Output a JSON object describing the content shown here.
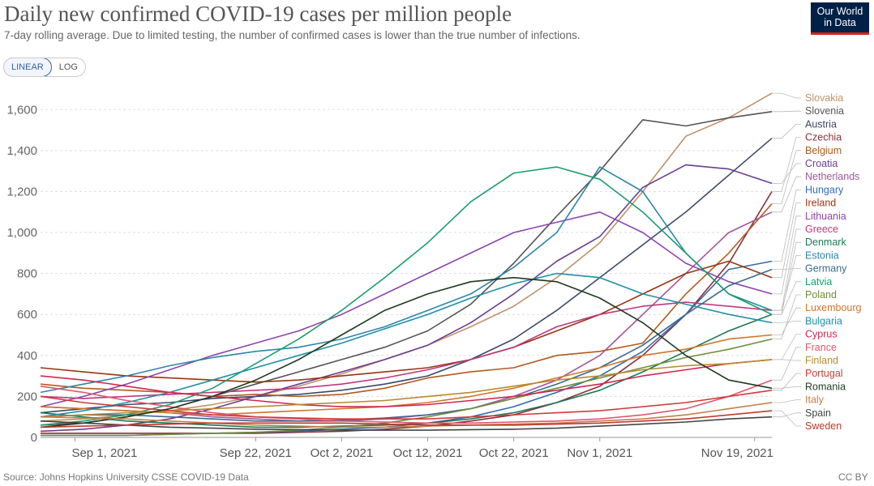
{
  "header": {
    "title": "Daily new confirmed COVID-19 cases per million people",
    "subtitle": "7-day rolling average. Due to limited testing, the number of confirmed cases is lower than the true number of infections.",
    "logo_line1": "Our World",
    "logo_line2": "in Data"
  },
  "controls": {
    "linear_label": "LINEAR",
    "log_label": "LOG",
    "selected": "LINEAR"
  },
  "footer": {
    "source": "Source: Johns Hopkins University CSSE COVID-19 Data",
    "license": "CC BY"
  },
  "chart_data": {
    "type": "line",
    "title": "Daily new confirmed COVID-19 cases per million people",
    "xlabel": "",
    "ylabel": "",
    "x": [
      "Aug 28, 2021",
      "Sep 2, 2021",
      "Sep 7, 2021",
      "Sep 12, 2021",
      "Sep 17, 2021",
      "Sep 22, 2021",
      "Sep 27, 2021",
      "Oct 2, 2021",
      "Oct 7, 2021",
      "Oct 12, 2021",
      "Oct 17, 2021",
      "Oct 22, 2021",
      "Oct 27, 2021",
      "Nov 1, 2021",
      "Nov 6, 2021",
      "Nov 11, 2021",
      "Nov 16, 2021",
      "Nov 21, 2021"
    ],
    "ylim": [
      0,
      1700
    ],
    "yticks": [
      0,
      200,
      400,
      600,
      800,
      1000,
      1200,
      1400,
      1600
    ],
    "ytick_labels": [
      "0",
      "200",
      "400",
      "600",
      "800",
      "1,000",
      "1,200",
      "1,400",
      "1,600"
    ],
    "xticks": [
      "Sep 1, 2021",
      "Sep 22, 2021",
      "Oct 2, 2021",
      "Oct 12, 2021",
      "Oct 22, 2021",
      "Nov 1, 2021",
      "Nov 19, 2021"
    ],
    "series": [
      {
        "name": "Slovakia",
        "color": "#c0926a",
        "values": [
          80,
          90,
          110,
          130,
          160,
          200,
          250,
          310,
          380,
          450,
          540,
          640,
          780,
          950,
          1200,
          1470,
          1560,
          1680
        ]
      },
      {
        "name": "Slovenia",
        "color": "#555555",
        "values": [
          60,
          70,
          100,
          140,
          200,
          260,
          320,
          380,
          440,
          520,
          650,
          850,
          1080,
          1300,
          1550,
          1520,
          1560,
          1590
        ]
      },
      {
        "name": "Austria",
        "color": "#3b4a6b",
        "values": [
          120,
          140,
          160,
          170,
          190,
          200,
          210,
          230,
          260,
          300,
          380,
          480,
          620,
          780,
          940,
          1100,
          1280,
          1460
        ]
      },
      {
        "name": "Czechia",
        "color": "#883039",
        "values": [
          20,
          20,
          20,
          20,
          20,
          20,
          25,
          30,
          40,
          55,
          80,
          110,
          170,
          250,
          400,
          600,
          850,
          1200
        ]
      },
      {
        "name": "Belgium",
        "color": "#b25a1f",
        "values": [
          260,
          240,
          230,
          220,
          200,
          210,
          200,
          210,
          240,
          290,
          320,
          340,
          400,
          420,
          460,
          700,
          900,
          1140
        ]
      },
      {
        "name": "Croatia",
        "color": "#6b3d8f",
        "values": [
          30,
          40,
          60,
          90,
          140,
          200,
          260,
          320,
          380,
          450,
          560,
          700,
          860,
          980,
          1220,
          1330,
          1310,
          1240
        ]
      },
      {
        "name": "Netherlands",
        "color": "#a2559c",
        "values": [
          150,
          140,
          130,
          120,
          100,
          90,
          80,
          80,
          90,
          110,
          140,
          200,
          280,
          400,
          600,
          800,
          1000,
          1100
        ]
      },
      {
        "name": "Hungary",
        "color": "#356bb3",
        "values": [
          10,
          10,
          10,
          15,
          20,
          25,
          30,
          40,
          50,
          70,
          100,
          150,
          220,
          300,
          420,
          600,
          820,
          860
        ]
      },
      {
        "name": "Ireland",
        "color": "#9a3412",
        "values": [
          340,
          320,
          300,
          290,
          280,
          270,
          280,
          300,
          320,
          340,
          380,
          440,
          520,
          600,
          700,
          800,
          860,
          780
        ]
      },
      {
        "name": "Lithuania",
        "color": "#8e44ad",
        "values": [
          150,
          200,
          260,
          330,
          400,
          460,
          520,
          600,
          700,
          800,
          900,
          1000,
          1050,
          1100,
          1000,
          850,
          760,
          700
        ]
      },
      {
        "name": "Greece",
        "color": "#c0387e",
        "values": [
          200,
          190,
          200,
          210,
          220,
          230,
          240,
          260,
          290,
          330,
          380,
          440,
          540,
          600,
          640,
          660,
          640,
          620
        ]
      },
      {
        "name": "Denmark",
        "color": "#1c7a55",
        "values": [
          120,
          100,
          80,
          70,
          60,
          50,
          50,
          55,
          60,
          70,
          90,
          120,
          170,
          230,
          320,
          420,
          520,
          600
        ]
      },
      {
        "name": "Estonia",
        "color": "#2e86a8",
        "values": [
          220,
          260,
          300,
          350,
          390,
          420,
          440,
          480,
          540,
          620,
          700,
          830,
          1000,
          1320,
          1200,
          900,
          700,
          620
        ]
      },
      {
        "name": "Germany",
        "color": "#3b6a8f",
        "values": [
          100,
          110,
          110,
          100,
          90,
          80,
          80,
          85,
          95,
          110,
          140,
          190,
          260,
          340,
          450,
          600,
          740,
          820
        ]
      },
      {
        "name": "Latvia",
        "color": "#1a9e6b",
        "values": [
          60,
          80,
          110,
          160,
          240,
          360,
          480,
          620,
          780,
          950,
          1150,
          1290,
          1320,
          1260,
          1100,
          900,
          700,
          600
        ]
      },
      {
        "name": "Poland",
        "color": "#6f8f3a",
        "values": [
          10,
          10,
          10,
          15,
          20,
          25,
          35,
          50,
          70,
          100,
          140,
          190,
          240,
          290,
          340,
          390,
          430,
          480
        ]
      },
      {
        "name": "Luxembourg",
        "color": "#d0752a",
        "values": [
          150,
          140,
          130,
          120,
          110,
          120,
          130,
          140,
          150,
          170,
          200,
          240,
          290,
          340,
          400,
          430,
          480,
          500
        ]
      },
      {
        "name": "Bulgaria",
        "color": "#1f8fa8",
        "values": [
          100,
          130,
          170,
          220,
          280,
          340,
          400,
          460,
          530,
          600,
          680,
          750,
          800,
          780,
          700,
          650,
          600,
          560
        ]
      },
      {
        "name": "Cyprus",
        "color": "#d1264f",
        "values": [
          300,
          280,
          250,
          220,
          200,
          180,
          160,
          150,
          150,
          160,
          180,
          200,
          230,
          260,
          300,
          330,
          360,
          380
        ]
      },
      {
        "name": "France",
        "color": "#e0566b",
        "values": [
          250,
          220,
          180,
          150,
          120,
          100,
          90,
          80,
          75,
          70,
          70,
          75,
          80,
          90,
          110,
          140,
          200,
          280
        ]
      },
      {
        "name": "Finland",
        "color": "#b88a2e",
        "values": [
          100,
          110,
          120,
          130,
          140,
          150,
          160,
          170,
          180,
          200,
          220,
          250,
          280,
          300,
          330,
          350,
          360,
          380
        ]
      },
      {
        "name": "Portugal",
        "color": "#d13b3b",
        "values": [
          200,
          170,
          150,
          130,
          110,
          100,
          95,
          90,
          90,
          90,
          100,
          110,
          120,
          130,
          150,
          170,
          200,
          230
        ]
      },
      {
        "name": "Romania",
        "color": "#1e3b1e",
        "values": [
          50,
          70,
          100,
          140,
          200,
          280,
          380,
          500,
          620,
          700,
          760,
          780,
          760,
          680,
          560,
          400,
          280,
          240
        ]
      },
      {
        "name": "Italy",
        "color": "#c57e4a",
        "values": [
          100,
          95,
          90,
          80,
          70,
          60,
          55,
          50,
          50,
          55,
          60,
          65,
          70,
          80,
          90,
          110,
          140,
          170
        ]
      },
      {
        "name": "Spain",
        "color": "#444444",
        "values": [
          80,
          70,
          60,
          50,
          45,
          40,
          38,
          35,
          35,
          35,
          38,
          40,
          45,
          55,
          65,
          75,
          90,
          100
        ]
      },
      {
        "name": "Sweden",
        "color": "#c0392b",
        "values": [
          50,
          55,
          60,
          65,
          70,
          70,
          70,
          70,
          65,
          60,
          60,
          60,
          65,
          70,
          80,
          90,
          110,
          130
        ]
      }
    ]
  }
}
